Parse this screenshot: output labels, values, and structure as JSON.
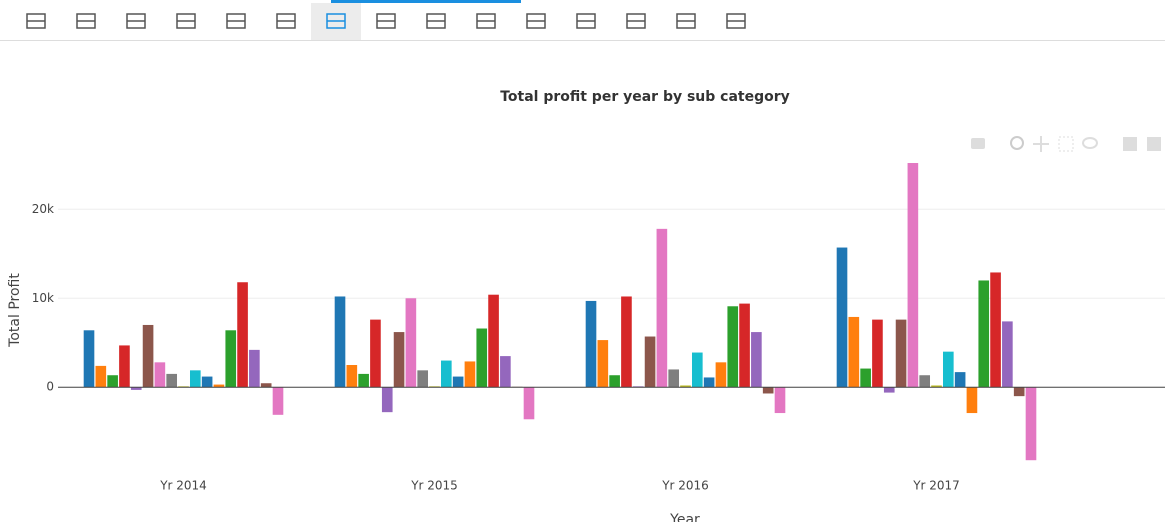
{
  "chart_data": {
    "type": "bar",
    "title": "Total profit per year by sub category",
    "x_label": "Year",
    "y_label": "Total Profit",
    "categories": [
      "Yr 2014",
      "Yr 2015",
      "Yr 2016",
      "Yr 2017"
    ],
    "ylim": [
      -9300,
      26100
    ],
    "yticks": [
      0,
      {
        "value": 10000,
        "label": "10k"
      },
      {
        "value": 20000,
        "label": "20k"
      }
    ],
    "grid": true,
    "series": [
      {
        "color": "#1f77b4",
        "values": [
          6400,
          10200,
          9700,
          15700
        ]
      },
      {
        "color": "#ff7f0e",
        "values": [
          2400,
          2500,
          5300,
          7900
        ]
      },
      {
        "color": "#2ca02c",
        "values": [
          1350,
          1500,
          1350,
          2100
        ]
      },
      {
        "color": "#d62728",
        "values": [
          4700,
          7600,
          10200,
          7600
        ]
      },
      {
        "color": "#9467bd",
        "values": [
          -300,
          -2800,
          100,
          -600
        ]
      },
      {
        "color": "#8c564b",
        "values": [
          7000,
          6200,
          5700,
          7600
        ]
      },
      {
        "color": "#e377c2",
        "values": [
          2800,
          10000,
          17800,
          25200
        ]
      },
      {
        "color": "#7f7f7f",
        "values": [
          1500,
          1900,
          2000,
          1350
        ]
      },
      {
        "color": "#bcbd22",
        "values": [
          100,
          100,
          200,
          200
        ]
      },
      {
        "color": "#17becf",
        "values": [
          1900,
          3000,
          3900,
          4000
        ]
      },
      {
        "color": "#1f77b4",
        "values": [
          1200,
          1200,
          1100,
          1700
        ]
      },
      {
        "color": "#ff7f0e",
        "values": [
          300,
          2900,
          2800,
          -2900
        ]
      },
      {
        "color": "#2ca02c",
        "values": [
          6400,
          6600,
          9100,
          12000
        ]
      },
      {
        "color": "#d62728",
        "values": [
          11800,
          10400,
          9400,
          12900
        ]
      },
      {
        "color": "#9467bd",
        "values": [
          4200,
          3500,
          6200,
          7400
        ]
      },
      {
        "color": "#8c564b",
        "values": [
          450,
          50,
          -700,
          -1000
        ]
      },
      {
        "color": "#e377c2",
        "values": [
          -3100,
          -3600,
          -2900,
          -8200
        ]
      }
    ]
  }
}
